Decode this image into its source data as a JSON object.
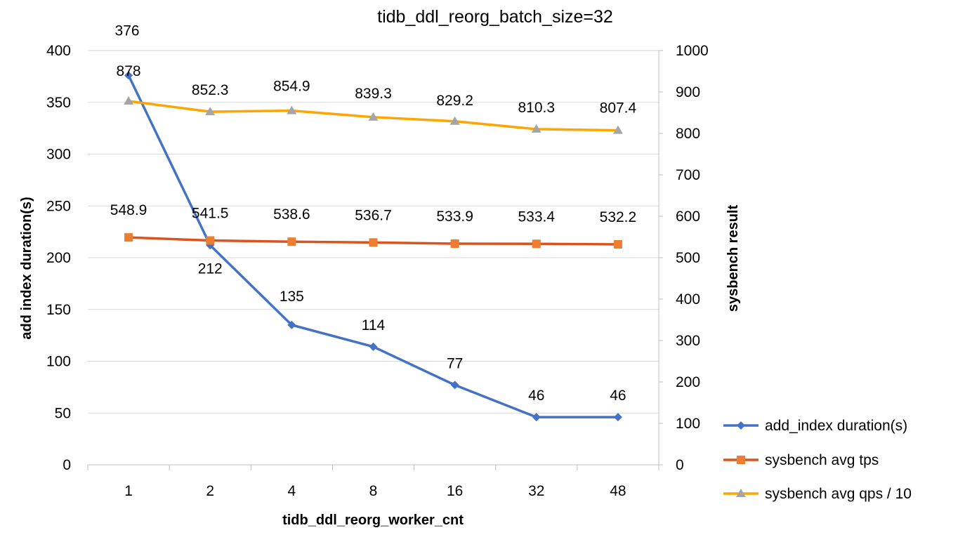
{
  "chart_data": {
    "type": "line",
    "title": "tidb_ddl_reorg_batch_size=32",
    "xlabel": "tidb_ddl_reorg_worker_cnt",
    "ylabel_left": "add index duration(s)",
    "ylabel_right": "sysbench result",
    "categories": [
      "1",
      "2",
      "4",
      "8",
      "16",
      "32",
      "48"
    ],
    "y_left": {
      "min": 0,
      "max": 400,
      "step": 50
    },
    "y_right": {
      "min": 0,
      "max": 1000,
      "step": 100
    },
    "grid": true,
    "legend_position": "bottom-right",
    "series": [
      {
        "name": "add_index duration(s)",
        "axis": "left",
        "marker": "diamond",
        "color": "#4472C4",
        "values": [
          376,
          212,
          135,
          114,
          77,
          46,
          46
        ],
        "labels": [
          "376",
          "212",
          "135",
          "114",
          "77",
          "46",
          "46"
        ]
      },
      {
        "name": "sysbench avg tps",
        "axis": "right",
        "marker": "square",
        "color": "#D9541E",
        "marker_color": "#ED7D31",
        "values": [
          548.9,
          541.5,
          538.6,
          536.7,
          533.9,
          533.4,
          532.2
        ],
        "labels": [
          "548.9",
          "541.5",
          "538.6",
          "536.7",
          "533.9",
          "533.4",
          "532.2"
        ]
      },
      {
        "name": "sysbench avg qps / 10",
        "axis": "right",
        "marker": "triangle",
        "color": "#FFA500",
        "marker_color": "#A5A5A5",
        "values": [
          878,
          852.3,
          854.9,
          839.3,
          829.2,
          810.3,
          807.4
        ],
        "labels": [
          "878",
          "852.3",
          "854.9",
          "839.3",
          "829.2",
          "810.3",
          "807.4"
        ]
      }
    ]
  }
}
